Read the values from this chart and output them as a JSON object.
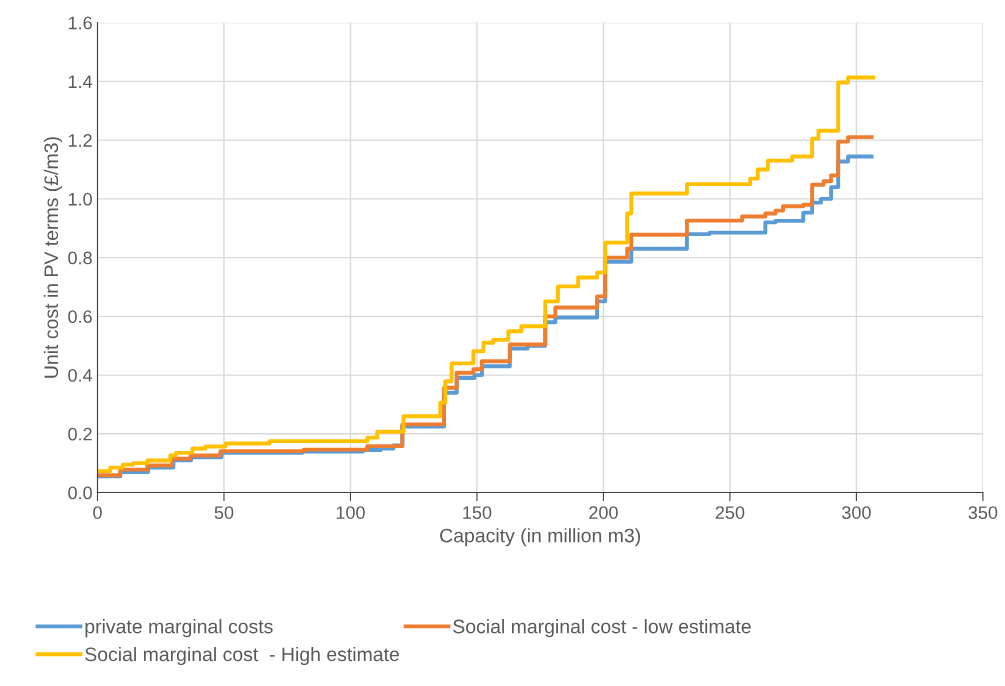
{
  "chart_data": {
    "type": "step",
    "xlabel": "Capacity (in million m3)",
    "ylabel": "Unit cost in PV terms (£/m3)",
    "xlim": [
      0,
      350
    ],
    "xticks": [
      0,
      50,
      100,
      150,
      200,
      250,
      300,
      350
    ],
    "ylim": [
      0,
      1.6
    ],
    "yticks": [
      {
        "value": 0,
        "label": "0.0"
      },
      0.2,
      0.4,
      0.6,
      0.8,
      {
        "value": 1,
        "label": "1.0"
      },
      1.2,
      1.4,
      1.6
    ],
    "grid": true,
    "legend": "bottom",
    "series": [
      {
        "name": "private marginal costs",
        "color": "#5b9bd5",
        "x": [
          0,
          9,
          20,
          30,
          37,
          49,
          81,
          105,
          112,
          117,
          120.5,
          137,
          142,
          149,
          152,
          163,
          170,
          177,
          181,
          197.5,
          200.7,
          211,
          233,
          242,
          264,
          268,
          279,
          282.5,
          286,
          290,
          292.8,
          296.7,
          306
        ],
        "values": [
          0.055,
          0.07,
          0.085,
          0.11,
          0.12,
          0.135,
          0.14,
          0.145,
          0.15,
          0.16,
          0.225,
          0.34,
          0.39,
          0.4,
          0.43,
          0.49,
          0.5,
          0.58,
          0.596,
          0.651,
          0.786,
          0.83,
          0.88,
          0.885,
          0.92,
          0.925,
          0.953,
          0.987,
          1.0,
          1.04,
          1.127,
          1.144,
          1.144
        ]
      },
      {
        "name": "Social marginal cost - low estimate",
        "color": "#ed7d31",
        "x": [
          0,
          9,
          19.7,
          29.5,
          36.8,
          48.6,
          81.5,
          106.6,
          120.5,
          137,
          142,
          148.6,
          151.9,
          163,
          177,
          181,
          197.5,
          200.7,
          209.4,
          211,
          233,
          254.8,
          264,
          268,
          271,
          279,
          282.5,
          287,
          290,
          292.8,
          296.7,
          306
        ],
        "values": [
          0.059,
          0.078,
          0.092,
          0.115,
          0.126,
          0.141,
          0.146,
          0.158,
          0.232,
          0.357,
          0.408,
          0.42,
          0.447,
          0.504,
          0.6,
          0.63,
          0.668,
          0.8,
          0.83,
          0.878,
          0.926,
          0.94,
          0.95,
          0.96,
          0.975,
          0.98,
          1.048,
          1.06,
          1.08,
          1.195,
          1.21,
          1.21
        ]
      },
      {
        "name": "Social marginal cost  - High estimate",
        "color": "#ffc000",
        "x": [
          0,
          5,
          10,
          14,
          19.7,
          28.8,
          31,
          37.5,
          42.7,
          50.6,
          68,
          106.7,
          110.6,
          121,
          135.5,
          137.5,
          140,
          148.6,
          152.6,
          156.5,
          162.4,
          167.6,
          177,
          182,
          190,
          197.5,
          200.7,
          209.4,
          211,
          233,
          258,
          261,
          265,
          274.6,
          282.5,
          285,
          292.8,
          296.7,
          306.6
        ],
        "values": [
          0.073,
          0.085,
          0.095,
          0.1,
          0.109,
          0.126,
          0.135,
          0.15,
          0.157,
          0.167,
          0.175,
          0.187,
          0.207,
          0.26,
          0.306,
          0.379,
          0.44,
          0.481,
          0.51,
          0.52,
          0.549,
          0.566,
          0.651,
          0.702,
          0.732,
          0.749,
          0.851,
          0.95,
          1.018,
          1.05,
          1.069,
          1.1,
          1.13,
          1.144,
          1.205,
          1.232,
          1.396,
          1.413,
          1.413
        ]
      }
    ]
  }
}
